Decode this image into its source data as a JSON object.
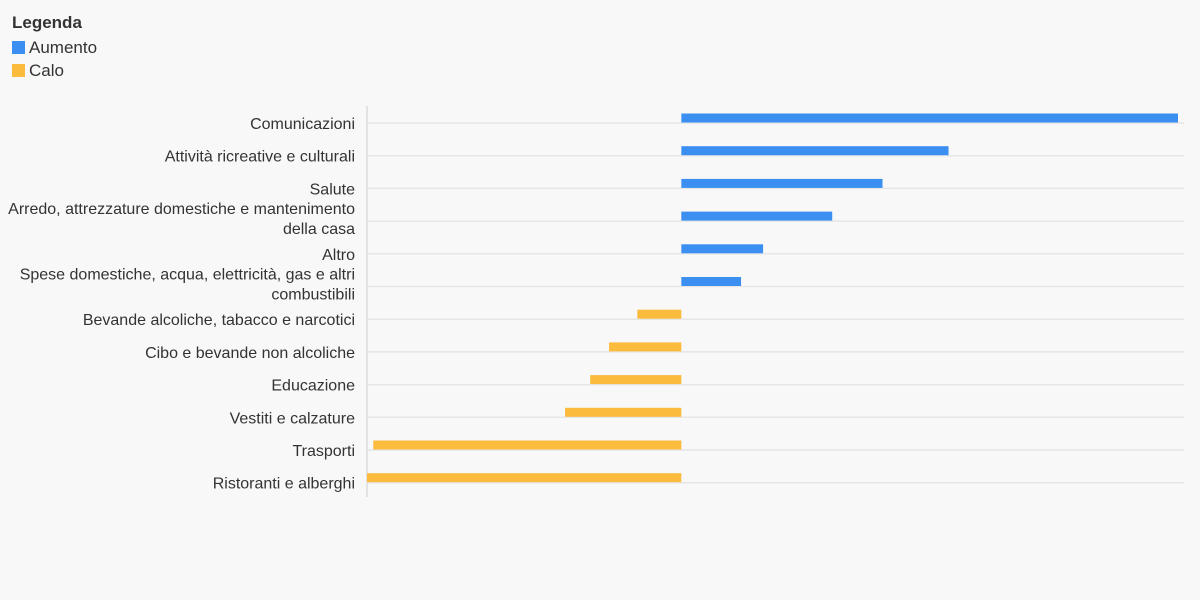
{
  "legend": {
    "title": "Legenda",
    "items": [
      {
        "label": "Aumento",
        "color": "#3a8ff0"
      },
      {
        "label": "Calo",
        "color": "#fbbb3d"
      }
    ]
  },
  "chart_data": {
    "type": "bar",
    "orientation": "horizontal",
    "title": "",
    "xlabel": "",
    "ylabel": "",
    "grid": true,
    "legend_position": "top-left",
    "xlim": [
      -0.5,
      0.79
    ],
    "categories": [
      "Comunicazioni",
      "Attività ricreative e culturali",
      "Salute",
      "Arredo, attrezzature domestiche e mantenimento della casa",
      "Altro",
      "Spese domestiche, acqua, elettricità, gas e altri combustibili",
      "Bevande alcoliche, tabacco e narcotici",
      "Cibo e bevande non alcoliche",
      "Educazione",
      "Vestiti e calzature",
      "Trasporti",
      "Ristoranti e alberghi"
    ],
    "category_lines": [
      [
        "Comunicazioni"
      ],
      [
        "Attività ricreative e culturali"
      ],
      [
        "Salute"
      ],
      [
        "Arredo, attrezzature domestiche e mantenimento",
        "della casa"
      ],
      [
        "Altro"
      ],
      [
        "Spese domestiche, acqua, elettricità, gas e altri",
        "combustibili"
      ],
      [
        "Bevande alcoliche, tabacco e narcotici"
      ],
      [
        "Cibo e bevande non alcoliche"
      ],
      [
        "Educazione"
      ],
      [
        "Vestiti e calzature"
      ],
      [
        "Trasporti"
      ],
      [
        "Ristoranti e alberghi"
      ]
    ],
    "values": [
      0.79,
      0.425,
      0.32,
      0.24,
      0.13,
      0.095,
      -0.07,
      -0.115,
      -0.145,
      -0.185,
      -0.49,
      -0.5
    ],
    "colors": {
      "positive": "#3a8ff0",
      "negative": "#fbbb3d",
      "grid": "#e6e6e6",
      "axis": "#cccccc"
    }
  }
}
